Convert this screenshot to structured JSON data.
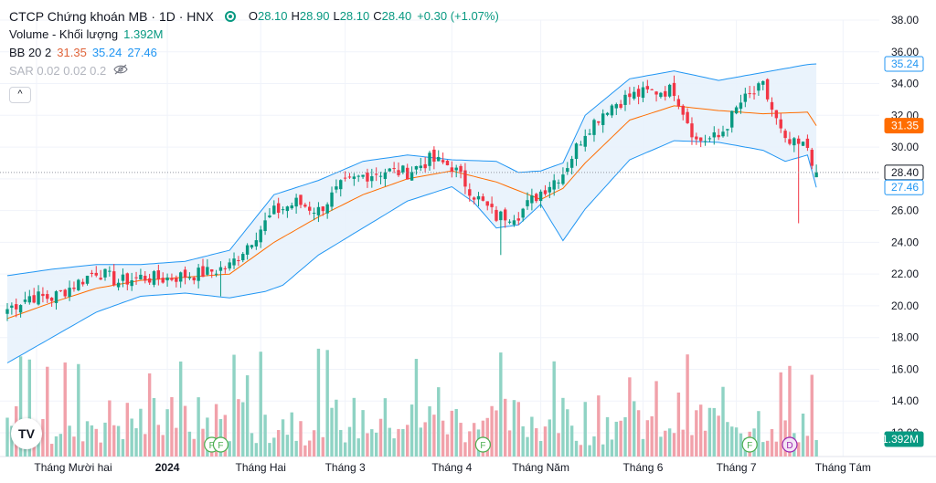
{
  "header": {
    "title": "CTCP Chứng khoán MB · 1D · HNX",
    "ohlc": [
      {
        "k": "O",
        "v": "28.10"
      },
      {
        "k": "H",
        "v": "28.90"
      },
      {
        "k": "L",
        "v": "28.10"
      },
      {
        "k": "C",
        "v": "28.40"
      }
    ],
    "change": "+0.30 (+1.07%)"
  },
  "indicators": {
    "volume": {
      "name": "Volume - Khối lượng",
      "value": "1.392M"
    },
    "bb": {
      "name": "BB 20 2",
      "basis": "31.35",
      "upper": "35.24",
      "lower": "27.46"
    },
    "sar": {
      "name": "SAR 0.02 0.02 0.2"
    }
  },
  "collapse_label": "^",
  "logo_text": "TV",
  "colors": {
    "up": "#089981",
    "down": "#f23645",
    "vol_up": "#8fd3c4",
    "vol_down": "#f1a1aa",
    "bb_band": "#2196f3",
    "bb_fill": "#e8f2fc",
    "bb_basis": "#ff6d00",
    "price_badge": "#ffffff",
    "grid": "#f0f3fa"
  },
  "axis": {
    "price_ticks": [
      "38.00",
      "36.00",
      "34.00",
      "32.00",
      "30.00",
      "28.00",
      "26.00",
      "24.00",
      "22.00",
      "20.00",
      "18.00",
      "16.00",
      "14.00",
      "12.00"
    ],
    "time_labels": [
      "Tháng Mười hai",
      "2024",
      "Tháng Hai",
      "Tháng 3",
      "Tháng 4",
      "Tháng Năm",
      "Tháng 6",
      "Tháng 7",
      "Tháng Tám"
    ],
    "price_badges": [
      {
        "label": "35.24",
        "kind": "upper"
      },
      {
        "label": "31.35",
        "kind": "basis"
      },
      {
        "label": "28.40",
        "kind": "last"
      },
      {
        "label": "27.46",
        "kind": "lower"
      },
      {
        "label": "1.392M",
        "kind": "volume"
      }
    ]
  },
  "events": [
    {
      "label": "F",
      "date_index": 46
    },
    {
      "label": "F",
      "date_index": 48
    },
    {
      "label": "F",
      "date_index": 107
    },
    {
      "label": "F",
      "date_index": 167
    },
    {
      "label": "D",
      "date_index": 176
    }
  ],
  "chart_data": {
    "type": "candlestick",
    "title": "CTCP Chứng khoán MB · 1D · HNX",
    "ylim": [
      11.5,
      38.5
    ],
    "grid": true,
    "price_close_path": [
      [
        0,
        19.8
      ],
      [
        5,
        20.6
      ],
      [
        10,
        20.5
      ],
      [
        15,
        21.3
      ],
      [
        20,
        22.2
      ],
      [
        25,
        21.5
      ],
      [
        30,
        21.8
      ],
      [
        35,
        21.7
      ],
      [
        40,
        21.9
      ],
      [
        45,
        22.1
      ],
      [
        50,
        22.5
      ],
      [
        55,
        24.2
      ],
      [
        60,
        25.9
      ],
      [
        65,
        26.5
      ],
      [
        70,
        26.0
      ],
      [
        75,
        27.5
      ],
      [
        80,
        28.2
      ],
      [
        85,
        28.5
      ],
      [
        90,
        28.4
      ],
      [
        95,
        29.2
      ],
      [
        100,
        28.8
      ],
      [
        105,
        27.0
      ],
      [
        110,
        25.6
      ],
      [
        115,
        25.8
      ],
      [
        120,
        27.2
      ],
      [
        125,
        28.4
      ],
      [
        130,
        31.0
      ],
      [
        135,
        32.5
      ],
      [
        140,
        33.2
      ],
      [
        145,
        33.5
      ],
      [
        150,
        33.6
      ],
      [
        155,
        30.4
      ],
      [
        160,
        30.6
      ],
      [
        165,
        32.8
      ],
      [
        170,
        33.8
      ],
      [
        175,
        30.2
      ],
      [
        180,
        30.0
      ],
      [
        182,
        28.4
      ]
    ],
    "bb_upper_path": [
      [
        0,
        21.9
      ],
      [
        10,
        22.3
      ],
      [
        20,
        22.6
      ],
      [
        30,
        22.6
      ],
      [
        40,
        22.8
      ],
      [
        50,
        23.5
      ],
      [
        60,
        27.0
      ],
      [
        70,
        27.9
      ],
      [
        80,
        29.1
      ],
      [
        90,
        29.5
      ],
      [
        100,
        29.2
      ],
      [
        110,
        29.1
      ],
      [
        115,
        28.4
      ],
      [
        120,
        28.5
      ],
      [
        125,
        29.0
      ],
      [
        130,
        32.0
      ],
      [
        140,
        34.3
      ],
      [
        150,
        34.8
      ],
      [
        160,
        34.2
      ],
      [
        170,
        34.7
      ],
      [
        180,
        35.2
      ],
      [
        182,
        35.24
      ]
    ],
    "bb_basis_path": [
      [
        0,
        19.2
      ],
      [
        10,
        20.2
      ],
      [
        20,
        21.1
      ],
      [
        30,
        21.6
      ],
      [
        40,
        21.8
      ],
      [
        50,
        22.0
      ],
      [
        60,
        24.0
      ],
      [
        70,
        25.6
      ],
      [
        80,
        27.0
      ],
      [
        90,
        28.0
      ],
      [
        100,
        28.5
      ],
      [
        110,
        27.8
      ],
      [
        120,
        26.7
      ],
      [
        125,
        27.4
      ],
      [
        130,
        29.0
      ],
      [
        140,
        31.7
      ],
      [
        150,
        32.6
      ],
      [
        160,
        32.3
      ],
      [
        170,
        32.1
      ],
      [
        180,
        32.2
      ],
      [
        182,
        31.35
      ]
    ],
    "bb_lower_path": [
      [
        0,
        16.4
      ],
      [
        10,
        18.0
      ],
      [
        20,
        19.6
      ],
      [
        30,
        20.6
      ],
      [
        40,
        20.8
      ],
      [
        50,
        20.5
      ],
      [
        58,
        20.9
      ],
      [
        62,
        21.3
      ],
      [
        70,
        23.2
      ],
      [
        80,
        24.9
      ],
      [
        90,
        26.6
      ],
      [
        100,
        27.5
      ],
      [
        105,
        26.5
      ],
      [
        110,
        24.9
      ],
      [
        115,
        25.1
      ],
      [
        120,
        26.4
      ],
      [
        125,
        24.1
      ],
      [
        130,
        26.1
      ],
      [
        140,
        29.2
      ],
      [
        150,
        30.4
      ],
      [
        160,
        30.3
      ],
      [
        170,
        29.8
      ],
      [
        175,
        29.1
      ],
      [
        180,
        29.5
      ],
      [
        182,
        27.46
      ]
    ],
    "wick_spikes": [
      {
        "i": 48,
        "low": 20.6
      },
      {
        "i": 111,
        "low": 23.2
      },
      {
        "i": 178,
        "low": 25.2
      }
    ],
    "last": {
      "open": 28.1,
      "high": 28.9,
      "low": 28.1,
      "close": 28.4,
      "volume": "1.392M"
    }
  }
}
